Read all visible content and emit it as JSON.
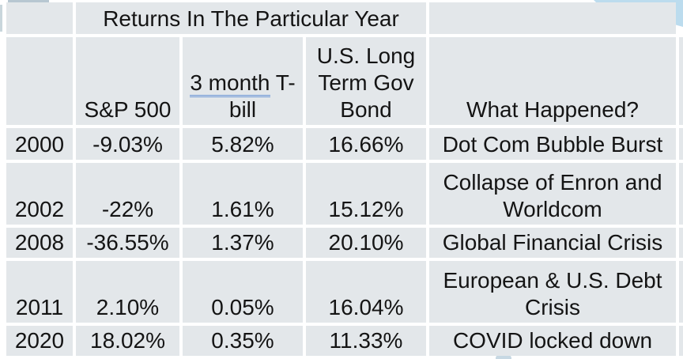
{
  "slide": {
    "background_color": "#ffffff",
    "decor": {
      "top_right_shape_color": "#bcdcee",
      "top_left_strip_color": "#b7c7d1",
      "left_edge_strip_color": "#c9d6dc",
      "bottom_tab_color": "#c7d8e3"
    }
  },
  "table": {
    "cell_color": "#e3e7ea",
    "text_color": "#141414",
    "grammar_underline_color": "#6b96d6",
    "title": "Returns In The Particular Year",
    "headers": {
      "year": "",
      "sp500": "S&P 500",
      "tbill_underlined_part": "3 month",
      "tbill_rest": " T-bill",
      "bond": "U.S. Long Term Gov Bond",
      "what_happened": "What Happened?"
    },
    "rows": [
      {
        "year": "2000",
        "sp500": "-9.03%",
        "tbill": "5.82%",
        "bond": "16.66%",
        "event": "Dot Com Bubble Burst"
      },
      {
        "year": "2002",
        "sp500": "-22%",
        "tbill": "1.61%",
        "bond": "15.12%",
        "event": "Collapse of Enron and Worldcom"
      },
      {
        "year": "2008",
        "sp500": "-36.55%",
        "tbill": "1.37%",
        "bond": "20.10%",
        "event": "Global Financial Crisis"
      },
      {
        "year": "2011",
        "sp500": "2.10%",
        "tbill": "0.05%",
        "bond": "16.04%",
        "event": "European & U.S. Debt Crisis"
      },
      {
        "year": "2020",
        "sp500": "18.02%",
        "tbill": "0.35%",
        "bond": "11.33%",
        "event": "COVID locked down"
      }
    ]
  }
}
